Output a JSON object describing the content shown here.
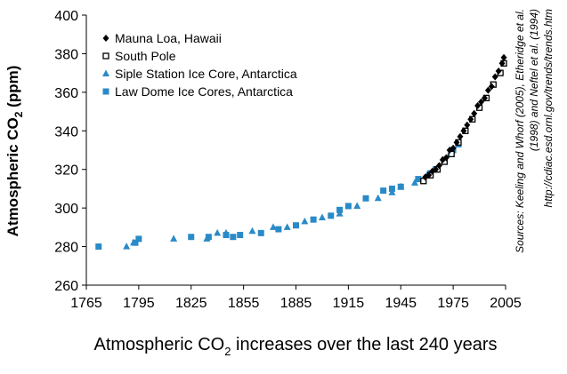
{
  "chart_data": {
    "type": "scatter",
    "title": {
      "text": "Atmospheric CO",
      "subscript": "2",
      "suffix": " increases over the last 240 years"
    },
    "y_label": {
      "text": "Atmospheric CO",
      "subscript": "2",
      "suffix": "  (ppm)"
    },
    "sources": [
      "Sources: Keeling and Whorf (2005), Etheridge et al.",
      "(1998) and Neftel et al. (1994)",
      "http://cdiac.esd.ornl.gov/trends/trends.htm"
    ],
    "xlim": [
      1765,
      2005
    ],
    "xticks": [
      1765,
      1795,
      1825,
      1855,
      1885,
      1915,
      1945,
      1975,
      2005
    ],
    "ylim": [
      260,
      400
    ],
    "yticks": [
      260,
      280,
      300,
      320,
      340,
      360,
      380,
      400
    ],
    "legend": "top-left",
    "series": [
      {
        "name": "Mauna Loa, Hawaii",
        "marker": "diamond",
        "color": "#000000",
        "x": [
          1959,
          1961,
          1963,
          1965,
          1967,
          1969,
          1971,
          1973,
          1975,
          1977,
          1979,
          1981,
          1983,
          1985,
          1987,
          1989,
          1991,
          1993,
          1995,
          1997,
          1999,
          2001,
          2003,
          2004
        ],
        "values": [
          316,
          317,
          319,
          320,
          322,
          325,
          326,
          330,
          331,
          334,
          337,
          340,
          343,
          346,
          349,
          353,
          355,
          357,
          361,
          363,
          368,
          371,
          375,
          378
        ]
      },
      {
        "name": "South Pole",
        "marker": "square-open",
        "color": "#000000",
        "x": [
          1958,
          1962,
          1966,
          1970,
          1974,
          1978,
          1982,
          1986,
          1990,
          1994,
          1998,
          2002,
          2004
        ],
        "values": [
          314,
          317,
          320,
          324,
          328,
          334,
          340,
          346,
          352,
          357,
          364,
          370,
          375
        ]
      },
      {
        "name": "Siple Station Ice Core, Antarctica",
        "marker": "triangle",
        "color": "#2a8ac8",
        "x": [
          1788,
          1792,
          1815,
          1834,
          1840,
          1845,
          1860,
          1872,
          1880,
          1890,
          1900,
          1910,
          1920,
          1932,
          1940,
          1945,
          1953,
          1960,
          1965,
          1970,
          1973
        ],
        "values": [
          280,
          282,
          284,
          284,
          287,
          287,
          288,
          290,
          290,
          293,
          295,
          297,
          301,
          305,
          308,
          311,
          313,
          317,
          320,
          324,
          328
        ]
      },
      {
        "name": "Law Dome Ice Cores, Antarctica",
        "marker": "square",
        "color": "#2a8ac8",
        "x": [
          1772,
          1793,
          1795,
          1825,
          1835,
          1845,
          1849,
          1853,
          1865,
          1875,
          1885,
          1895,
          1905,
          1910,
          1915,
          1925,
          1935,
          1940,
          1945,
          1955,
          1962,
          1965,
          1970,
          1975,
          1978
        ],
        "values": [
          280,
          282,
          284,
          285,
          285,
          286,
          285,
          286,
          287,
          289,
          291,
          294,
          296,
          299,
          301,
          305,
          309,
          310,
          311,
          315,
          318,
          320,
          325,
          330,
          333
        ]
      }
    ]
  }
}
